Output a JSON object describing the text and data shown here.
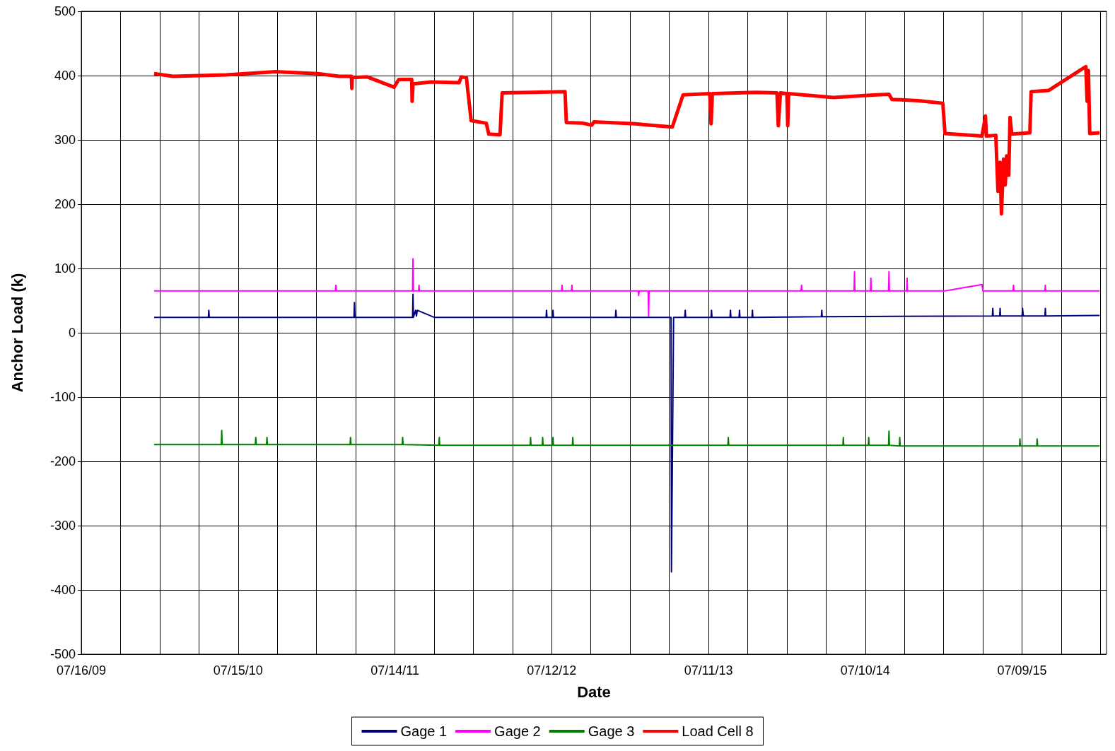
{
  "chart_data": {
    "type": "line",
    "xlabel": "Date",
    "ylabel": "Anchor Load (k)",
    "xlim": [
      "2009-07-16",
      "2016-01-21"
    ],
    "xticks": [
      {
        "value": "2009-07-16",
        "label": "07/16/09"
      },
      {
        "value": "2009-10-15",
        "label": null
      },
      {
        "value": "2010-01-14",
        "label": null
      },
      {
        "value": "2010-04-15",
        "label": null
      },
      {
        "value": "2010-07-15",
        "label": "07/15/10"
      },
      {
        "value": "2010-10-14",
        "label": null
      },
      {
        "value": "2011-01-13",
        "label": null
      },
      {
        "value": "2011-04-14",
        "label": null
      },
      {
        "value": "2011-07-14",
        "label": "07/14/11"
      },
      {
        "value": "2011-10-13",
        "label": null
      },
      {
        "value": "2012-01-12",
        "label": null
      },
      {
        "value": "2012-04-12",
        "label": null
      },
      {
        "value": "2012-07-12",
        "label": "07/12/12"
      },
      {
        "value": "2012-10-11",
        "label": null
      },
      {
        "value": "2013-01-10",
        "label": null
      },
      {
        "value": "2013-04-11",
        "label": null
      },
      {
        "value": "2013-07-11",
        "label": "07/11/13"
      },
      {
        "value": "2013-10-10",
        "label": null
      },
      {
        "value": "2014-01-09",
        "label": null
      },
      {
        "value": "2014-04-10",
        "label": null
      },
      {
        "value": "2014-07-10",
        "label": "07/10/14"
      },
      {
        "value": "2014-10-09",
        "label": null
      },
      {
        "value": "2015-01-08",
        "label": null
      },
      {
        "value": "2015-04-09",
        "label": null
      },
      {
        "value": "2015-07-09",
        "label": "07/09/15"
      },
      {
        "value": "2015-10-08",
        "label": null
      },
      {
        "value": "2016-01-07",
        "label": null
      }
    ],
    "ylim": [
      -500,
      500
    ],
    "yticks": [
      -500,
      -400,
      -300,
      -200,
      -100,
      0,
      100,
      200,
      300,
      400,
      500
    ],
    "grid": true,
    "legend": "bottom",
    "marker": "none",
    "line_style": "solid",
    "series": [
      {
        "name": "Gage 1",
        "color": "#000080",
        "x": [
          "2010-01-01",
          "2010-05-07",
          "2010-05-08",
          "2010-05-09",
          "2011-04-10",
          "2011-04-11",
          "2011-04-12",
          "2011-08-24",
          "2011-08-25",
          "2011-08-26",
          "2011-08-31",
          "2011-09-02",
          "2011-09-04",
          "2011-10-13",
          "2012-06-29",
          "2012-06-30",
          "2012-07-01",
          "2012-07-14",
          "2012-07-15",
          "2012-07-16",
          "2012-12-07",
          "2012-12-08",
          "2012-12-09",
          "2013-04-15",
          "2013-04-16",
          "2013-04-21",
          "2013-05-17",
          "2013-05-18",
          "2013-05-19",
          "2013-07-17",
          "2013-07-18",
          "2013-07-19",
          "2013-08-30",
          "2013-08-31",
          "2013-09-01",
          "2013-09-20",
          "2013-09-21",
          "2013-09-22",
          "2013-10-20",
          "2013-10-21",
          "2013-10-22",
          "2014-03-30",
          "2014-03-31",
          "2014-04-01",
          "2015-05-01",
          "2015-05-02",
          "2015-05-03",
          "2015-05-18",
          "2015-05-19",
          "2015-05-20",
          "2015-07-09",
          "2015-07-10",
          "2015-07-12",
          "2015-08-31",
          "2015-09-01",
          "2015-09-02",
          "2016-01-05"
        ],
        "values": [
          24,
          24,
          35,
          24,
          24,
          47,
          24,
          24,
          60,
          24,
          35,
          26,
          35,
          24,
          24,
          35,
          24,
          24,
          35,
          24,
          24,
          35,
          24,
          24,
          -372,
          24,
          24,
          35,
          24,
          24,
          35,
          24,
          24,
          35,
          24,
          24,
          35,
          24,
          24,
          35,
          24,
          25,
          35,
          25,
          26,
          38,
          26,
          26,
          38,
          26,
          26,
          38,
          26,
          26,
          38,
          26,
          27
        ]
      },
      {
        "name": "Gage 2",
        "color": "#ff00ff",
        "x": [
          "2010-01-01",
          "2011-02-26",
          "2011-02-27",
          "2011-02-28",
          "2011-08-24",
          "2011-08-25",
          "2011-08-26",
          "2011-09-07",
          "2011-09-08",
          "2011-09-09",
          "2012-08-04",
          "2012-08-05",
          "2012-08-06",
          "2012-08-27",
          "2012-08-28",
          "2012-08-29",
          "2013-01-29",
          "2013-01-30",
          "2013-01-31",
          "2013-02-21",
          "2013-02-22",
          "2013-02-23",
          "2014-02-11",
          "2014-02-12",
          "2014-02-13",
          "2014-06-14",
          "2014-06-15",
          "2014-06-16",
          "2014-07-22",
          "2014-07-23",
          "2014-07-24",
          "2014-09-02",
          "2014-09-03",
          "2014-09-04",
          "2014-10-14",
          "2014-10-15",
          "2014-10-16",
          "2015-01-11",
          "2015-04-07",
          "2015-04-09",
          "2015-06-18",
          "2015-06-19",
          "2015-06-20",
          "2015-08-31",
          "2015-09-01",
          "2015-09-02",
          "2016-01-05"
        ],
        "values": [
          65,
          65,
          74,
          65,
          65,
          115,
          65,
          65,
          74,
          65,
          65,
          74,
          65,
          65,
          74,
          65,
          65,
          58,
          65,
          65,
          26,
          65,
          65,
          74,
          65,
          65,
          95,
          65,
          65,
          85,
          65,
          65,
          95,
          65,
          65,
          85,
          65,
          65,
          75,
          65,
          65,
          74,
          65,
          65,
          74,
          65,
          65
        ]
      },
      {
        "name": "Gage 3",
        "color": "#008000",
        "x": [
          "2010-01-01",
          "2010-06-06",
          "2010-06-07",
          "2010-06-08",
          "2010-08-24",
          "2010-08-25",
          "2010-08-26",
          "2010-09-19",
          "2010-09-20",
          "2010-09-21",
          "2011-04-01",
          "2011-04-02",
          "2011-04-03",
          "2011-07-31",
          "2011-08-01",
          "2011-08-02",
          "2011-10-24",
          "2011-10-25",
          "2011-10-26",
          "2012-05-23",
          "2012-05-24",
          "2012-05-25",
          "2012-06-20",
          "2012-06-21",
          "2012-06-22",
          "2012-07-14",
          "2012-07-15",
          "2012-07-16",
          "2012-08-29",
          "2012-08-30",
          "2012-08-31",
          "2013-08-25",
          "2013-08-26",
          "2013-08-27",
          "2014-05-19",
          "2014-05-20",
          "2014-05-21",
          "2014-07-17",
          "2014-07-18",
          "2014-07-19",
          "2014-09-02",
          "2014-09-03",
          "2014-09-04",
          "2014-09-27",
          "2014-09-28",
          "2014-09-29",
          "2015-07-03",
          "2015-07-04",
          "2015-07-05",
          "2015-08-12",
          "2015-08-13",
          "2015-08-14",
          "2016-01-05"
        ],
        "values": [
          -174,
          -174,
          -152,
          -174,
          -174,
          -163,
          -174,
          -174,
          -163,
          -174,
          -174,
          -163,
          -174,
          -174,
          -163,
          -174,
          -175,
          -163,
          -175,
          -175,
          -163,
          -175,
          -175,
          -163,
          -175,
          -175,
          -163,
          -175,
          -175,
          -163,
          -175,
          -175,
          -163,
          -175,
          -175,
          -163,
          -175,
          -175,
          -163,
          -175,
          -175,
          -153,
          -175,
          -176,
          -163,
          -176,
          -176,
          -165,
          -176,
          -176,
          -165,
          -176,
          -176
        ]
      },
      {
        "name": "Load Cell 8",
        "color": "#ff0000",
        "x": [
          "2010-01-01",
          "2010-02-14",
          "2010-06-17",
          "2010-10-10",
          "2011-01-16",
          "2011-03-06",
          "2011-04-04",
          "2011-04-05",
          "2011-04-06",
          "2011-05-11",
          "2011-07-12",
          "2011-07-23",
          "2011-08-22",
          "2011-08-23",
          "2011-08-25",
          "2011-10-06",
          "2011-12-10",
          "2011-12-15",
          "2011-12-27",
          "2012-01-07",
          "2012-02-11",
          "2012-02-17",
          "2012-03-14",
          "2012-03-19",
          "2012-08-12",
          "2012-08-15",
          "2012-09-22",
          "2012-10-13",
          "2012-10-18",
          "2013-01-23",
          "2013-02-22",
          "2013-04-18",
          "2013-05-13",
          "2013-07-14",
          "2013-07-17",
          "2013-07-20",
          "2013-10-29",
          "2013-12-17",
          "2013-12-20",
          "2013-12-25",
          "2014-01-09",
          "2014-01-11",
          "2014-01-13",
          "2014-04-27",
          "2014-08-04",
          "2014-09-03",
          "2014-09-10",
          "2014-11-10",
          "2015-01-06",
          "2015-01-11",
          "2015-04-07",
          "2015-04-15",
          "2015-04-17",
          "2015-05-09",
          "2015-05-14",
          "2015-05-19",
          "2015-05-22",
          "2015-05-27",
          "2015-05-31",
          "2015-06-03",
          "2015-06-08",
          "2015-06-11",
          "2015-06-15",
          "2015-07-27",
          "2015-07-30",
          "2015-09-09",
          "2015-12-04",
          "2015-12-07",
          "2015-12-10",
          "2015-12-13",
          "2016-01-05"
        ],
        "values": [
          403,
          399,
          401,
          406,
          403,
          399,
          399,
          380,
          397,
          398,
          382,
          394,
          394,
          360,
          387,
          390,
          389,
          398,
          397,
          330,
          326,
          309,
          308,
          373,
          375,
          327,
          326,
          323,
          328,
          325,
          323,
          320,
          370,
          372,
          325,
          372,
          374,
          373,
          322,
          373,
          372,
          322,
          372,
          366,
          370,
          371,
          363,
          361,
          357,
          310,
          306,
          337,
          306,
          307,
          220,
          265,
          185,
          270,
          230,
          275,
          245,
          335,
          309,
          311,
          375,
          377,
          414,
          360,
          408,
          310,
          311
        ]
      }
    ]
  }
}
